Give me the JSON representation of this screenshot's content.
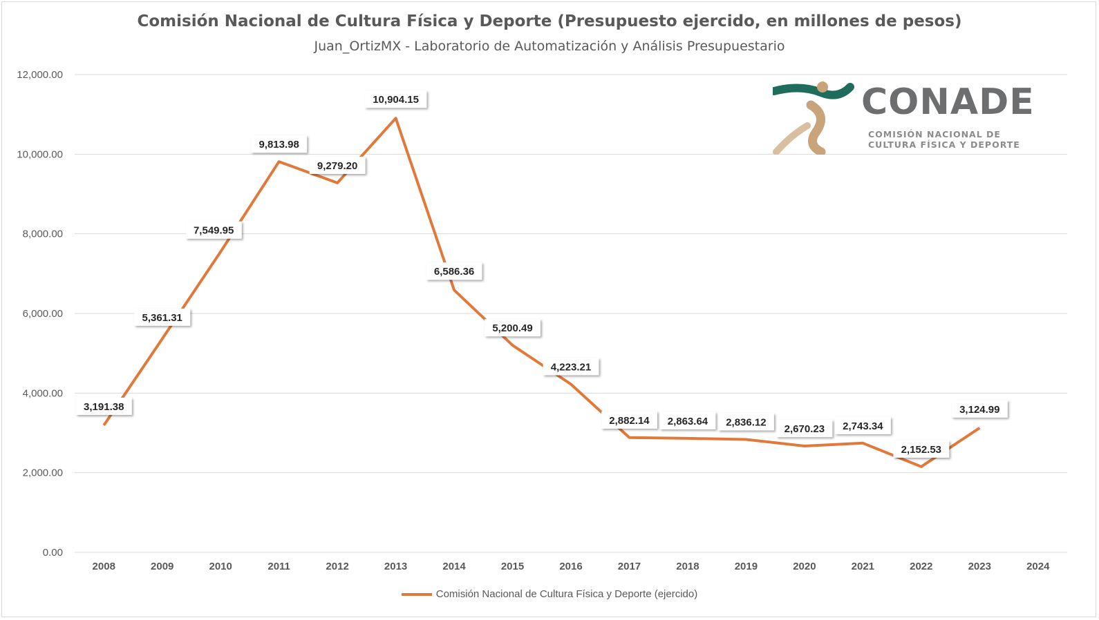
{
  "chart_data": {
    "type": "line",
    "title": "Comisión Nacional de Cultura Física y Deporte (Presupuesto ejercido, en millones de pesos)",
    "subtitle": "Juan_OrtizMX - Laboratorio de Automatización y Análisis Presupuestario",
    "categories": [
      "2008",
      "2009",
      "2010",
      "2011",
      "2012",
      "2013",
      "2014",
      "2015",
      "2016",
      "2017",
      "2018",
      "2019",
      "2020",
      "2021",
      "2022",
      "2023",
      "2024"
    ],
    "series": [
      {
        "name": "Comisión Nacional de Cultura Física y Deporte (ejercido)",
        "values": [
          3191.38,
          5361.31,
          7549.95,
          9813.98,
          9279.2,
          10904.15,
          6586.36,
          5200.49,
          4223.21,
          2882.14,
          2863.64,
          2836.12,
          2670.23,
          2743.34,
          2152.53,
          3124.99,
          null
        ],
        "labels": [
          "3,191.38",
          "5,361.31",
          "7,549.95",
          "9,813.98",
          "9,279.20",
          "10,904.15",
          "6,586.36",
          "5,200.49",
          "4,223.21",
          "2,882.14",
          "2,863.64",
          "2,836.12",
          "2,670.23",
          "2,743.34",
          "2,152.53",
          "3,124.99",
          ""
        ],
        "color": "#e0793a"
      }
    ],
    "ylim": [
      0,
      12000
    ],
    "yticks": [
      "0.00",
      "2,000.00",
      "4,000.00",
      "6,000.00",
      "8,000.00",
      "10,000.00",
      "12,000.00"
    ],
    "grid": true,
    "legend_position": "bottom"
  },
  "logo": {
    "word": "CONADE",
    "line1": "COMISIÓN NACIONAL DE",
    "line2": "CULTURA FÍSICA Y DEPORTE",
    "colors": {
      "teal": "#1f6b5c",
      "gold": "#c9a47a"
    }
  }
}
